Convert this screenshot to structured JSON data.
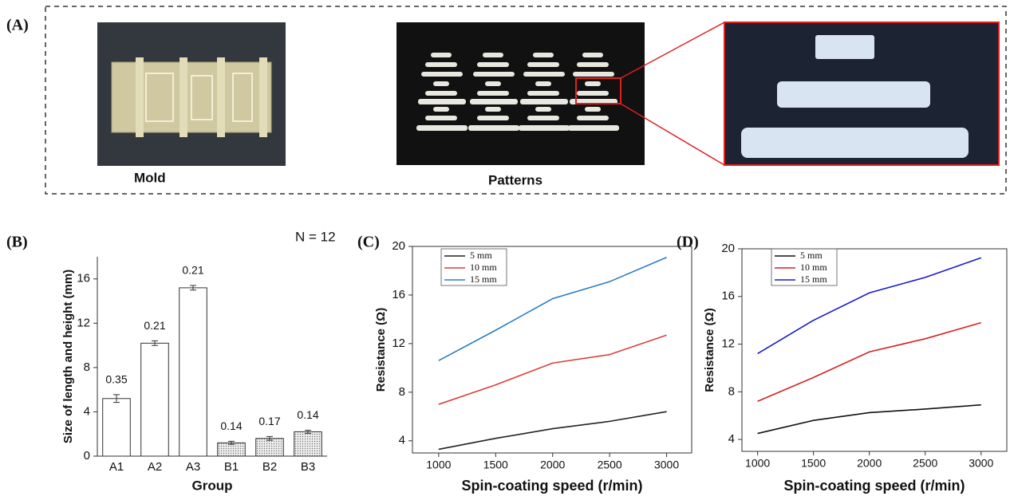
{
  "panel_a": {
    "label": "(A)",
    "captions": [
      "Mold",
      "Patterns"
    ]
  },
  "chart_data": [
    {
      "type": "bar",
      "panel_label": "(B)",
      "annotation": "N = 12",
      "xlabel": "Group",
      "ylabel": "Size of length and height (mm)",
      "categories": [
        "A1",
        "A2",
        "A3",
        "B1",
        "B2",
        "B3"
      ],
      "values": [
        5.2,
        10.2,
        15.2,
        1.2,
        1.6,
        2.2
      ],
      "errors": [
        0.35,
        0.21,
        0.21,
        0.14,
        0.17,
        0.14
      ],
      "colors": [
        "#ffffff",
        "#ffffff",
        "#ffffff",
        "#d4d4d4",
        "#d4d4d4",
        "#d4d4d4"
      ],
      "ylim": [
        0,
        18
      ],
      "yticks": [
        0,
        4,
        8,
        12,
        16
      ]
    },
    {
      "type": "line",
      "panel_label": "(C)",
      "xlabel": "Spin-coating speed (r/min)",
      "ylabel": "Resistance (Ω)",
      "x": [
        1000,
        1500,
        2000,
        2500,
        3000
      ],
      "series": [
        {
          "name": "5 mm",
          "color": "#222222",
          "values": [
            3.3,
            4.2,
            5.0,
            5.6,
            6.4
          ]
        },
        {
          "name": "10 mm",
          "color": "#d9403a",
          "values": [
            7.0,
            8.6,
            10.4,
            11.1,
            12.7
          ]
        },
        {
          "name": "15 mm",
          "color": "#2a7cc7",
          "values": [
            10.6,
            13.1,
            15.7,
            17.1,
            19.1
          ]
        }
      ],
      "xlim": [
        770,
        3220
      ],
      "xticks": [
        1000,
        1500,
        2000,
        2500,
        3000
      ],
      "ylim": [
        3,
        20
      ],
      "yticks": [
        4,
        8,
        12,
        16,
        20
      ]
    },
    {
      "type": "line",
      "panel_label": "(D)",
      "xlabel": "Spin-coating speed (r/min)",
      "ylabel": "Resistance (Ω)",
      "x": [
        1000,
        1500,
        2000,
        2500,
        3000
      ],
      "series": [
        {
          "name": "5 mm",
          "color": "#111111",
          "values": [
            4.5,
            5.6,
            6.25,
            6.55,
            6.9
          ]
        },
        {
          "name": "10 mm",
          "color": "#d62020",
          "values": [
            7.2,
            9.2,
            11.35,
            12.45,
            13.8
          ]
        },
        {
          "name": "15 mm",
          "color": "#1a1ad0",
          "values": [
            11.2,
            14.0,
            16.3,
            17.6,
            19.25
          ]
        }
      ],
      "xlim": [
        860,
        3230
      ],
      "xticks": [
        1000,
        1500,
        2000,
        2500,
        3000
      ],
      "ylim": [
        3,
        20
      ],
      "yticks": [
        4,
        8,
        12,
        16,
        20
      ]
    }
  ]
}
